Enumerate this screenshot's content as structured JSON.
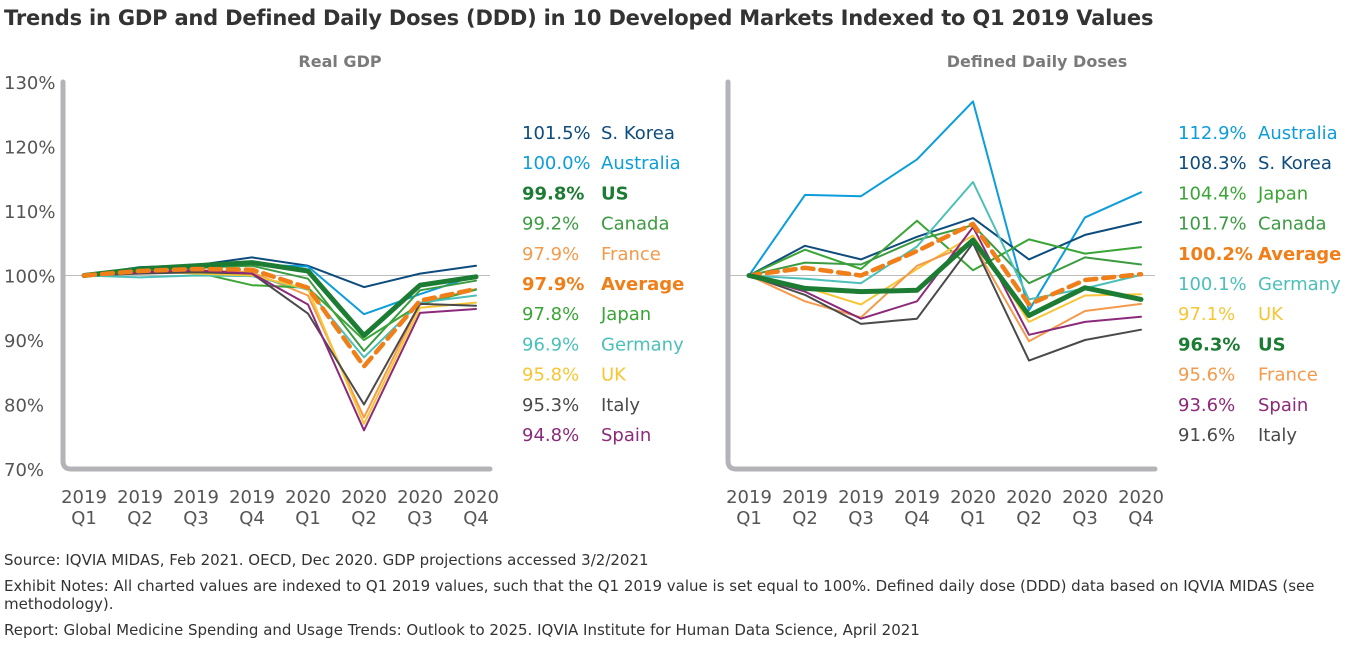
{
  "title": "Trends in GDP and Defined Daily Doses (DDD) in 10 Developed Markets Indexed to Q1 2019 Values",
  "chart_data": [
    {
      "type": "line",
      "title": "Real GDP",
      "ylim": [
        70,
        130
      ],
      "yticks": [
        "70%",
        "80%",
        "90%",
        "100%",
        "110%",
        "120%",
        "130%"
      ],
      "ytick_values": [
        70,
        80,
        90,
        100,
        110,
        120,
        130
      ],
      "categories": [
        [
          "2019",
          "Q1"
        ],
        [
          "2019",
          "Q2"
        ],
        [
          "2019",
          "Q3"
        ],
        [
          "2019",
          "Q4"
        ],
        [
          "2020",
          "Q1"
        ],
        [
          "2020",
          "Q2"
        ],
        [
          "2020",
          "Q3"
        ],
        [
          "2020",
          "Q4"
        ]
      ],
      "series": [
        {
          "name": "S. Korea",
          "label": "101.5%",
          "color": "#0d4c7d",
          "bold": false,
          "dashed": false,
          "values": [
            100,
            101.3,
            101.6,
            102.8,
            101.5,
            98.2,
            100.3,
            101.5
          ]
        },
        {
          "name": "Australia",
          "label": "100.0%",
          "color": "#0d9ddb",
          "bold": false,
          "dashed": false,
          "values": [
            100,
            100.6,
            101.1,
            101.7,
            101.4,
            94.0,
            97.1,
            100.0
          ]
        },
        {
          "name": "US",
          "label": "99.8%",
          "color": "#1c7c33",
          "bold": true,
          "dashed": false,
          "values": [
            100,
            101.0,
            101.5,
            102.0,
            100.7,
            90.7,
            98.5,
            99.8
          ]
        },
        {
          "name": "Canada",
          "label": "99.2%",
          "color": "#3c9b41",
          "bold": false,
          "dashed": false,
          "values": [
            100,
            100.8,
            101.2,
            101.5,
            99.5,
            88.3,
            97.7,
            99.2
          ]
        },
        {
          "name": "France",
          "label": "97.9%",
          "color": "#f39a4c",
          "bold": false,
          "dashed": false,
          "values": [
            100,
            100.5,
            100.8,
            100.5,
            96.9,
            78.0,
            95.7,
            97.9
          ]
        },
        {
          "name": "Average",
          "label": "97.9%",
          "color": "#f07f1a",
          "bold": true,
          "dashed": true,
          "values": [
            100,
            100.7,
            101.0,
            100.9,
            98.1,
            85.9,
            96.1,
            97.9
          ]
        },
        {
          "name": "Japan",
          "label": "97.8%",
          "color": "#3aa535",
          "bold": false,
          "dashed": false,
          "values": [
            100,
            100.6,
            100.5,
            98.5,
            98.1,
            90.0,
            95.5,
            97.8
          ]
        },
        {
          "name": "Germany",
          "label": "96.9%",
          "color": "#4cc0b8",
          "bold": false,
          "dashed": false,
          "values": [
            100,
            99.7,
            100.0,
            99.9,
            97.8,
            87.3,
            95.8,
            96.9
          ]
        },
        {
          "name": "UK",
          "label": "95.8%",
          "color": "#f7c535",
          "bold": false,
          "dashed": false,
          "values": [
            100,
            100.7,
            100.3,
            100.0,
            97.9,
            77.0,
            95.0,
            95.8
          ]
        },
        {
          "name": "Italy",
          "label": "95.3%",
          "color": "#4a4a4a",
          "bold": false,
          "dashed": false,
          "values": [
            100,
            100.3,
            100.5,
            100.3,
            94.1,
            80.0,
            95.6,
            95.3
          ]
        },
        {
          "name": "Spain",
          "label": "94.8%",
          "color": "#8c2a7a",
          "bold": false,
          "dashed": false,
          "values": [
            100,
            100.5,
            100.8,
            100.3,
            95.5,
            76.0,
            94.2,
            94.8
          ]
        }
      ]
    },
    {
      "type": "line",
      "title": "Defined Daily Doses",
      "ylim": [
        70,
        130
      ],
      "categories": [
        [
          "2019",
          "Q1"
        ],
        [
          "2019",
          "Q2"
        ],
        [
          "2019",
          "Q3"
        ],
        [
          "2019",
          "Q4"
        ],
        [
          "2020",
          "Q1"
        ],
        [
          "2020",
          "Q2"
        ],
        [
          "2020",
          "Q3"
        ],
        [
          "2020",
          "Q4"
        ]
      ],
      "series": [
        {
          "name": "Australia",
          "label": "112.9%",
          "color": "#0d9ddb",
          "bold": false,
          "dashed": false,
          "values": [
            100,
            112.5,
            112.3,
            118.0,
            127.0,
            94.6,
            109.0,
            112.9
          ]
        },
        {
          "name": "S. Korea",
          "label": "108.3%",
          "color": "#0d4c7d",
          "bold": false,
          "dashed": false,
          "values": [
            100,
            104.6,
            102.5,
            106.0,
            108.9,
            102.5,
            106.3,
            108.3
          ]
        },
        {
          "name": "Japan",
          "label": "104.4%",
          "color": "#3aa535",
          "bold": false,
          "dashed": false,
          "values": [
            100,
            104.0,
            101.0,
            108.5,
            100.8,
            105.6,
            103.4,
            104.4
          ]
        },
        {
          "name": "Canada",
          "label": "101.7%",
          "color": "#3c9b41",
          "bold": false,
          "dashed": false,
          "values": [
            100,
            102.0,
            101.7,
            105.5,
            107.8,
            98.8,
            102.8,
            101.7
          ]
        },
        {
          "name": "Average",
          "label": "100.2%",
          "color": "#f07f1a",
          "bold": true,
          "dashed": true,
          "values": [
            100,
            101.2,
            100.0,
            103.8,
            108.0,
            95.5,
            99.3,
            100.2
          ]
        },
        {
          "name": "Germany",
          "label": "100.1%",
          "color": "#4cc0b8",
          "bold": false,
          "dashed": false,
          "values": [
            100,
            99.5,
            98.8,
            104.5,
            114.5,
            96.3,
            98.0,
            100.1
          ]
        },
        {
          "name": "UK",
          "label": "97.1%",
          "color": "#f7c535",
          "bold": false,
          "dashed": false,
          "values": [
            100,
            98.2,
            95.5,
            101.0,
            106.2,
            92.8,
            96.9,
            97.1
          ]
        },
        {
          "name": "US",
          "label": "96.3%",
          "color": "#1c7c33",
          "bold": true,
          "dashed": false,
          "values": [
            100,
            98.0,
            97.5,
            97.7,
            105.5,
            93.8,
            98.1,
            96.3
          ]
        },
        {
          "name": "France",
          "label": "95.6%",
          "color": "#f39a4c",
          "bold": false,
          "dashed": false,
          "values": [
            100,
            96.0,
            93.5,
            101.5,
            105.0,
            89.8,
            94.5,
            95.6
          ]
        },
        {
          "name": "Spain",
          "label": "93.6%",
          "color": "#8c2a7a",
          "bold": false,
          "dashed": false,
          "values": [
            100,
            97.5,
            93.3,
            96.0,
            107.5,
            90.8,
            92.8,
            93.6
          ]
        },
        {
          "name": "Italy",
          "label": "91.6%",
          "color": "#4a4a4a",
          "bold": false,
          "dashed": false,
          "values": [
            100,
            97.0,
            92.5,
            93.3,
            105.0,
            86.8,
            90.0,
            91.6
          ]
        }
      ]
    }
  ],
  "footnotes": [
    "Source: IQVIA MIDAS, Feb 2021. OECD, Dec 2020. GDP projections accessed 3/2/2021",
    "Exhibit Notes: All charted values are indexed to Q1 2019 values, such that the Q1 2019  value is set equal to 100%. Defined daily dose (DDD) data based on IQVIA MIDAS (see methodology).",
    "Report: Global Medicine Spending and Usage Trends: Outlook to 2025. IQVIA Institute for Human Data Science, April 2021"
  ]
}
